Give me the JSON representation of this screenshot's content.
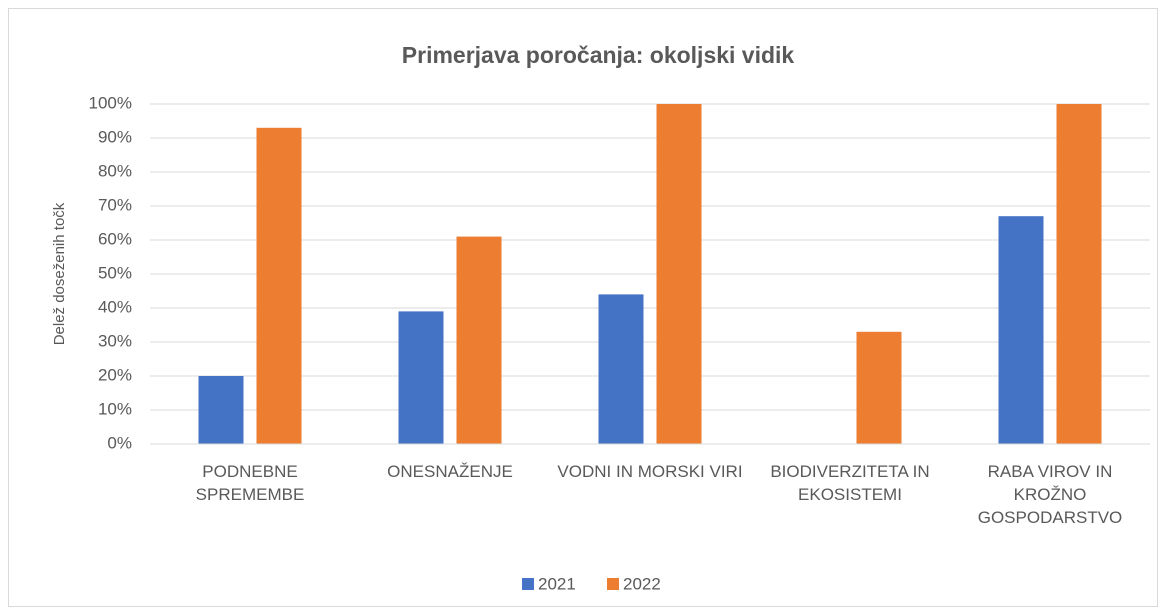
{
  "chart_data": {
    "type": "bar",
    "title": "Primerjava poročanja: okoljski vidik",
    "y_label": "Delež doseženih točk",
    "categories": [
      "PODNEBNE SPREMEMBE",
      "ONESNAŽENJE",
      "VODNI IN MORSKI VIRI",
      "BIODIVERZITETA IN EKOSISTEMI",
      "RABA VIROV IN KROŽNO GOSPODARSTVO"
    ],
    "series": [
      {
        "name": "2021",
        "color": "#4472c4",
        "values": [
          20,
          39,
          44,
          0,
          67
        ]
      },
      {
        "name": "2022",
        "color": "#ed7d31",
        "values": [
          93,
          61,
          100,
          33,
          100
        ]
      }
    ],
    "ylim": [
      0,
      100
    ],
    "yticks": [
      {
        "value": 0,
        "label": "0%"
      },
      {
        "value": 10,
        "label": "10%"
      },
      {
        "value": 20,
        "label": "20%"
      },
      {
        "value": 30,
        "label": "30%"
      },
      {
        "value": 40,
        "label": "40%"
      },
      {
        "value": 50,
        "label": "50%"
      },
      {
        "value": 60,
        "label": "60%"
      },
      {
        "value": 70,
        "label": "70%"
      },
      {
        "value": 80,
        "label": "80%"
      },
      {
        "value": 90,
        "label": "90%"
      },
      {
        "value": 100,
        "label": "100%"
      }
    ],
    "grid": true,
    "legend": "bottom"
  }
}
